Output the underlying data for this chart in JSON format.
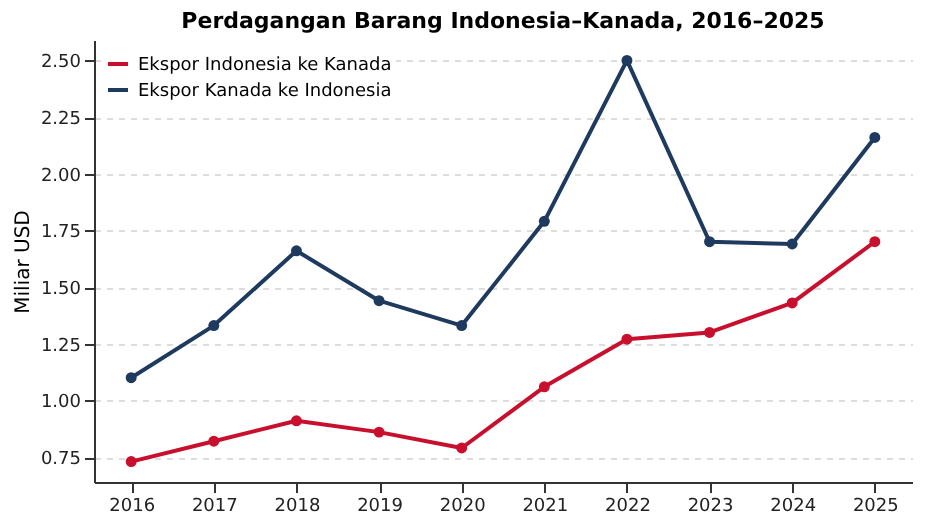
{
  "chart_data": {
    "type": "line",
    "title": "Perdagangan Barang Indonesia–Kanada, 2016–2025",
    "ylabel": "Miliar USD",
    "x": [
      2016,
      2017,
      2018,
      2019,
      2020,
      2021,
      2022,
      2023,
      2024,
      2025
    ],
    "series": [
      {
        "name": "Ekspor Indonesia ke Kanada",
        "color": "#c8102e",
        "values": [
          0.73,
          0.82,
          0.91,
          0.86,
          0.79,
          1.06,
          1.27,
          1.3,
          1.43,
          1.7
        ]
      },
      {
        "name": "Ekspor Kanada ke Indonesia",
        "color": "#1f3a5f",
        "values": [
          1.1,
          1.33,
          1.66,
          1.44,
          1.33,
          1.79,
          2.5,
          1.7,
          1.69,
          2.16
        ]
      }
    ],
    "xlim": [
      2015.55,
      2025.45
    ],
    "xticks": [
      2016,
      2017,
      2018,
      2019,
      2020,
      2021,
      2022,
      2023,
      2024,
      2025
    ],
    "ylim": [
      0.64,
      2.59
    ],
    "yticks": [
      0.75,
      {
        "value": 1,
        "label": "1.00"
      },
      1.25,
      {
        "value": 1.5,
        "label": "1.50"
      },
      1.75,
      {
        "value": 2,
        "label": "2.00"
      },
      2.25,
      {
        "value": 2.5,
        "label": "2.50"
      }
    ],
    "grid": "y",
    "legend": "top left",
    "marker": "circle",
    "line_style": "solid"
  }
}
